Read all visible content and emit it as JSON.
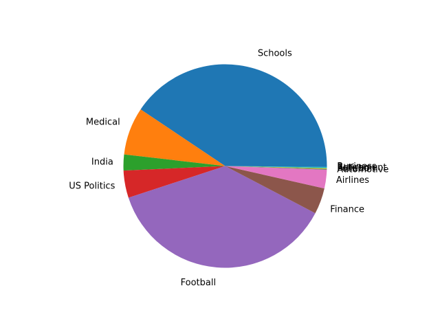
{
  "chart_data": {
    "type": "pie",
    "title": "",
    "start_angle_deg": 0,
    "direction": "counterclockwise",
    "slices": [
      {
        "label": "Schools",
        "value": 40.2,
        "color": "#1f77b4"
      },
      {
        "label": "Medical",
        "value": 7.5,
        "color": "#ff7f0e"
      },
      {
        "label": "India",
        "value": 2.5,
        "color": "#2ca02c"
      },
      {
        "label": "US Politics",
        "value": 4.3,
        "color": "#d62728"
      },
      {
        "label": "Football",
        "value": 36.9,
        "color": "#9467bd"
      },
      {
        "label": "Finance",
        "value": 4.1,
        "color": "#8c564b"
      },
      {
        "label": "Airlines",
        "value": 2.9,
        "color": "#e377c2"
      },
      {
        "label": "Automotive",
        "value": 0.15,
        "color": "#7f7f7f"
      },
      {
        "label": "Pollution",
        "value": 0.15,
        "color": "#bcbd22"
      },
      {
        "label": "Retirement",
        "value": 0.15,
        "color": "#17becf"
      },
      {
        "label": "Business",
        "value": 0.15,
        "color": "#1f77b4"
      }
    ]
  }
}
